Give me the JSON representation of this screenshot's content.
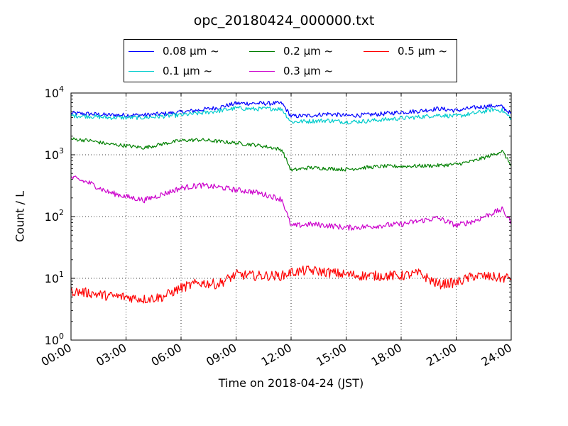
{
  "chart_data": {
    "type": "line",
    "title": "opc_20180424_000000.txt",
    "xlabel": "Time on 2018-04-24 (JST)",
    "ylabel": "Count / L",
    "yscale": "log",
    "ylim": [
      1,
      10000
    ],
    "xlim": [
      "00:00",
      "24:00"
    ],
    "x_tick_labels": [
      "00:00",
      "03:00",
      "06:00",
      "09:00",
      "12:00",
      "15:00",
      "18:00",
      "21:00",
      "24:00"
    ],
    "y_tick_labels": [
      {
        "base": "10",
        "exp": "0"
      },
      {
        "base": "10",
        "exp": "1"
      },
      {
        "base": "10",
        "exp": "2"
      },
      {
        "base": "10",
        "exp": "3"
      },
      {
        "base": "10",
        "exp": "4"
      }
    ],
    "grid": true,
    "legend_position": "top-center",
    "x": [
      "00:00",
      "01:00",
      "02:00",
      "03:00",
      "04:00",
      "05:00",
      "06:00",
      "07:00",
      "08:00",
      "09:00",
      "10:00",
      "11:00",
      "11:30",
      "12:00",
      "13:00",
      "14:00",
      "15:00",
      "16:00",
      "17:00",
      "18:00",
      "19:00",
      "20:00",
      "21:00",
      "22:00",
      "23:00",
      "23:30",
      "24:00"
    ],
    "series": [
      {
        "name": "0.08 µm ~",
        "color": "#0000ff",
        "values": [
          4700,
          4600,
          4400,
          4400,
          4400,
          4600,
          4900,
          5300,
          5800,
          6800,
          6800,
          6800,
          6800,
          4200,
          4300,
          4600,
          4300,
          4400,
          4600,
          4900,
          5100,
          5600,
          5200,
          5800,
          6200,
          6000,
          4600
        ]
      },
      {
        "name": "0.1 µm ~",
        "color": "#00cccc",
        "values": [
          4300,
          4200,
          4000,
          4000,
          4000,
          4200,
          4400,
          4700,
          5100,
          5700,
          5500,
          5600,
          5500,
          3400,
          3500,
          3600,
          3400,
          3500,
          3700,
          3900,
          4100,
          4400,
          4200,
          4700,
          5400,
          5200,
          3900
        ]
      },
      {
        "name": "0.2 µm ~",
        "color": "#008000",
        "values": [
          1800,
          1700,
          1500,
          1400,
          1300,
          1500,
          1700,
          1750,
          1650,
          1550,
          1450,
          1300,
          1200,
          560,
          620,
          600,
          580,
          620,
          650,
          650,
          660,
          670,
          700,
          800,
          1000,
          1150,
          680
        ]
      },
      {
        "name": "0.3 µm ~",
        "color": "#cc00cc",
        "values": [
          430,
          350,
          250,
          210,
          185,
          230,
          290,
          320,
          300,
          270,
          250,
          210,
          190,
          70,
          75,
          72,
          66,
          68,
          72,
          75,
          85,
          95,
          72,
          85,
          115,
          130,
          82
        ]
      },
      {
        "name": "0.5 µm ~",
        "color": "#ff0000",
        "values": [
          6.2,
          5.8,
          5.2,
          5.0,
          4.6,
          5.0,
          7.0,
          8.5,
          8.0,
          11.5,
          11.0,
          11.0,
          11.0,
          12.5,
          13.5,
          12.5,
          11.5,
          11.0,
          11.0,
          11.0,
          12.0,
          8.0,
          8.5,
          11.0,
          10.5,
          10.0,
          10.5
        ]
      }
    ]
  }
}
